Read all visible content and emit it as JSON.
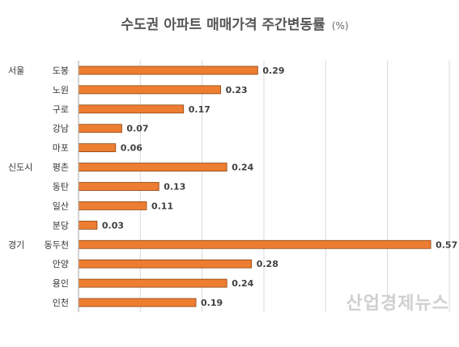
{
  "chart_data": {
    "type": "bar",
    "orientation": "horizontal",
    "title": "수도권 아파트 매매가격 주간변동률",
    "title_unit": "(%)",
    "groups": [
      {
        "name": "서울",
        "start_index": 0
      },
      {
        "name": "신도시",
        "start_index": 5
      },
      {
        "name": "경기",
        "start_index": 9
      }
    ],
    "categories": [
      "도봉",
      "노원",
      "구로",
      "강남",
      "마포",
      "평촌",
      "동탄",
      "일산",
      "분당",
      "동두천",
      "안양",
      "용인",
      "인천"
    ],
    "values": [
      0.29,
      0.23,
      0.17,
      0.07,
      0.06,
      0.24,
      0.13,
      0.11,
      0.03,
      0.57,
      0.28,
      0.24,
      0.19
    ],
    "value_labels": [
      "0.29",
      "0.23",
      "0.17",
      "0.07",
      "0.06",
      "0.24",
      "0.13",
      "0.11",
      "0.03",
      "0.57",
      "0.28",
      "0.24",
      "0.19"
    ],
    "xlim": [
      0,
      0.6
    ],
    "grid": true,
    "bar_color": "#ED7D31",
    "bar_edge_color": "#8B4513",
    "grid_color": "#D9D9D9"
  },
  "watermark": "산업경제뉴스"
}
